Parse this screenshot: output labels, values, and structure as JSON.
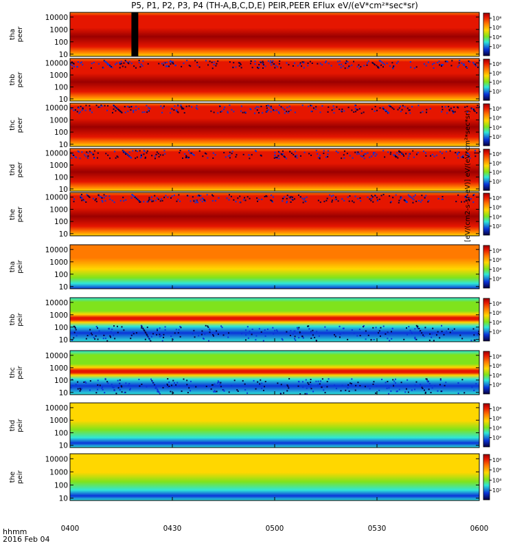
{
  "title": "P5, P1, P2, P3, P4 (TH-A,B,C,D,E) PEIR,PEER EFlux eV/(eV*cm²*sec*sr)",
  "x_footer": {
    "line1": "hhmm",
    "line2": "2016 Feb 04"
  },
  "colorbar": {
    "ticks": [
      "10²",
      "10⁴",
      "10⁶",
      "10⁸"
    ],
    "label": "[eV/(cm2-s-sr-eV)] eV/(eV*cm²*sec*sr)"
  },
  "colors": {
    "deep": "#9b0000",
    "red": "#e51600",
    "orange": "#ff7a00",
    "yellow": "#ffd700",
    "green": "#7fe31c",
    "cyan": "#2fe6d8",
    "blue": "#0a34d8",
    "dark": "#07003d"
  },
  "chart_data": {
    "type": "heatmap",
    "x_axis": {
      "label": "hhmm",
      "ticks": [
        "0400",
        "0430",
        "0500",
        "0530",
        "0600"
      ],
      "range": [
        "0400",
        "0600"
      ]
    },
    "y_axis": {
      "scale": "log",
      "unit": "eV",
      "ticks": [
        "10",
        "100",
        "1000",
        "10000"
      ]
    },
    "colorbar_range": [
      "10¹",
      "10⁸"
    ],
    "panels": [
      {
        "probe": "tha",
        "species": "peer",
        "label": "tha\npeer",
        "y_ticks": [
          "10",
          "100",
          "1000",
          "10000"
        ],
        "pattern": "electron-dense",
        "data_gap": {
          "from": "0418",
          "to": "0420"
        }
      },
      {
        "probe": "thb",
        "species": "peer",
        "label": "thb\npeer",
        "y_ticks": [
          "10",
          "100",
          "1000",
          "10000"
        ],
        "pattern": "electron-dense"
      },
      {
        "probe": "thc",
        "species": "peer",
        "label": "thc\npeer",
        "y_ticks": [
          "10",
          "100",
          "1000",
          "10000"
        ],
        "pattern": "electron-dense"
      },
      {
        "probe": "thd",
        "species": "peer",
        "label": "thd\npeer",
        "y_ticks": [
          "10",
          "100",
          "1000",
          "10000"
        ],
        "pattern": "electron-dense"
      },
      {
        "probe": "the",
        "species": "peer",
        "label": "the\npeer",
        "y_ticks": [
          "10",
          "100",
          "1000",
          "10000"
        ],
        "pattern": "electron-dense"
      },
      {
        "probe": "tha",
        "species": "peir",
        "label": "tha\npeir",
        "y_ticks": [
          "10",
          "100",
          "1000",
          "10000"
        ],
        "pattern": "ion-warm"
      },
      {
        "probe": "thb",
        "species": "peir",
        "label": "thb\npeir",
        "y_ticks": [
          "10",
          "100",
          "1000",
          "10000"
        ],
        "pattern": "ion-banded"
      },
      {
        "probe": "thc",
        "species": "peir",
        "label": "thc\npeir",
        "y_ticks": [
          "10",
          "100",
          "1000",
          "10000"
        ],
        "pattern": "ion-banded"
      },
      {
        "probe": "thd",
        "species": "peir",
        "label": "thd\npeir",
        "y_ticks": [
          "10",
          "100",
          "1000",
          "10000"
        ],
        "pattern": "ion-cool"
      },
      {
        "probe": "the",
        "species": "peir",
        "label": "the\npeir",
        "y_ticks": [
          "10",
          "100",
          "1000",
          "10000"
        ],
        "pattern": "ion-cool"
      }
    ]
  }
}
